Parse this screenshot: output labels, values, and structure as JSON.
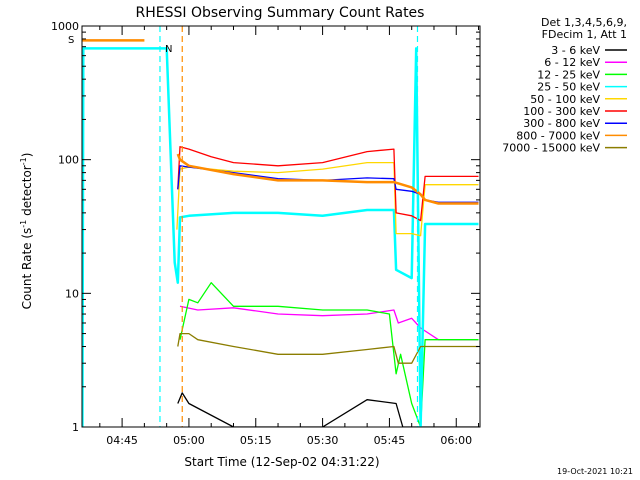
{
  "chart_data": {
    "type": "line",
    "title": "RHESSI Observing Summary Count Rates",
    "xlabel": "Start Time (12-Sep-02 04:31:22)",
    "ylabel_main": "Count Rate (s",
    "ylabel_sup1": "-1",
    "ylabel_mid": " detector",
    "ylabel_sup2": "-1",
    "ylabel_end": ")",
    "timestamp": "19-Oct-2021 10:21",
    "x_range_min": [
      36,
      106
    ],
    "x_ticks": [
      {
        "t": 45,
        "label": "04:45"
      },
      {
        "t": 60,
        "label": "05:00"
      },
      {
        "t": 75,
        "label": "05:15"
      },
      {
        "t": 90,
        "label": "05:30"
      },
      {
        "t": 105,
        "label": "05:45"
      },
      {
        "t": 120,
        "label": "06:00"
      }
    ],
    "ylim": [
      1,
      1000
    ],
    "yscale": "log",
    "y_ticks": [
      {
        "v": 1,
        "label": "1"
      },
      {
        "v": 10,
        "label": "10"
      },
      {
        "v": 100,
        "label": "100"
      },
      {
        "v": 1000,
        "label": "1000"
      }
    ],
    "legend": {
      "placement": "right",
      "header": [
        "Det 1,3,4,5,6,9,",
        "FDecim 1, Att 1"
      ]
    },
    "series": [
      {
        "name": "3 - 6 keV",
        "color": "#000000",
        "t": [
          56.8,
          57.5,
          58.5,
          60.0,
          70,
          80,
          90,
          100,
          106.5,
          108,
          112,
          116,
          125
        ],
        "values": [
          null,
          1.5,
          1.8,
          1.5,
          1.0,
          1.0,
          1.0,
          1.6,
          1.5,
          1.0,
          1.0,
          1.0,
          1.0
        ]
      },
      {
        "name": "6 - 12 keV",
        "color": "#ff00ff",
        "t": [
          56.8,
          58,
          62,
          70,
          80,
          90,
          100,
          106,
          107,
          110,
          112,
          116,
          125
        ],
        "values": [
          null,
          8.0,
          7.5,
          7.8,
          7.0,
          6.8,
          7.0,
          7.5,
          6.0,
          6.5,
          5.5,
          4.5,
          4.5
        ]
      },
      {
        "name": "12 - 25 keV",
        "color": "#00ff00",
        "t": [
          56.8,
          58,
          60,
          62,
          65,
          70,
          80,
          90,
          100,
          105,
          106.5,
          107.5,
          110,
          112,
          113,
          116,
          125
        ],
        "values": [
          null,
          4.5,
          9.0,
          8.5,
          12.0,
          8.0,
          8.0,
          7.5,
          7.5,
          7.0,
          2.5,
          3.5,
          1.5,
          1.0,
          4.5,
          4.5,
          4.5
        ]
      },
      {
        "name": "25 - 50 keV",
        "color": "#00ffff",
        "t": [
          36.1,
          36.3,
          36.5,
          54,
          55,
          56.8,
          57.5,
          58,
          60,
          70,
          80,
          90,
          100,
          106,
          106.5,
          110,
          111,
          112,
          113,
          116,
          125
        ],
        "values": [
          1.0,
          680,
          680,
          680,
          680,
          17.0,
          12.0,
          37.0,
          38.0,
          40.0,
          40.0,
          38.0,
          42.0,
          42.0,
          15.0,
          13.0,
          680,
          1.0,
          33.0,
          33.0,
          33.0
        ]
      },
      {
        "name": "50 - 100 keV",
        "color": "#ffd700",
        "t": [
          56.8,
          57.3,
          58,
          60,
          70,
          80,
          90,
          100,
          106,
          106.5,
          110,
          112,
          113,
          116,
          125
        ],
        "values": [
          null,
          30.0,
          85.0,
          88.0,
          82.0,
          80.0,
          85.0,
          95.0,
          95.0,
          28.0,
          28.0,
          27.0,
          65.0,
          65.0,
          65.0
        ]
      },
      {
        "name": "100 - 300 keV",
        "color": "#ff0000",
        "t": [
          56.8,
          57.5,
          58,
          60,
          65,
          70,
          80,
          90,
          100,
          106,
          106.5,
          110,
          112,
          113,
          116,
          125
        ],
        "values": [
          null,
          60.0,
          125.0,
          120.0,
          105.0,
          95.0,
          90.0,
          95.0,
          115.0,
          120.0,
          40.0,
          38.0,
          35.0,
          75.0,
          75.0,
          75.0
        ]
      },
      {
        "name": "300 - 800 keV",
        "color": "#0000ff",
        "t": [
          56.8,
          57.5,
          58,
          60,
          70,
          80,
          90,
          100,
          106,
          106.5,
          110,
          112,
          113,
          116,
          125
        ],
        "values": [
          null,
          60.0,
          90.0,
          88.0,
          80.0,
          72.0,
          70.0,
          73.0,
          72.0,
          60.0,
          58.0,
          55.0,
          50.0,
          48.0,
          48.0
        ]
      },
      {
        "name": "800 - 7000 keV",
        "color": "#ff8c00",
        "t": [
          36.1,
          36.3,
          46,
          50,
          56.8,
          57.5,
          58,
          60,
          70,
          80,
          90,
          100,
          106,
          110,
          112,
          113,
          116,
          125
        ],
        "values": [
          780,
          780,
          780,
          780,
          null,
          110.0,
          100.0,
          90.0,
          78.0,
          70.0,
          70.0,
          68.0,
          68.0,
          62.0,
          55.0,
          50.0,
          47.0,
          47.0
        ]
      },
      {
        "name": "7000 - 15000 keV",
        "color": "#8b7d00",
        "t": [
          56.8,
          57.5,
          58,
          60,
          62,
          70,
          80,
          90,
          100,
          106,
          107,
          110,
          112,
          116,
          125
        ],
        "values": [
          null,
          4.0,
          5.0,
          5.0,
          4.5,
          4.0,
          3.5,
          3.5,
          3.8,
          4.0,
          3.0,
          3.0,
          4.0,
          4.0,
          4.0
        ]
      }
    ],
    "events": [
      {
        "label": "S",
        "t": 58.5,
        "color": "#ff8c00"
      },
      {
        "label": "N",
        "t": 53.5,
        "color": "#00ffff"
      },
      {
        "label": "",
        "t": 111.3,
        "color": "#00ffff"
      }
    ]
  }
}
